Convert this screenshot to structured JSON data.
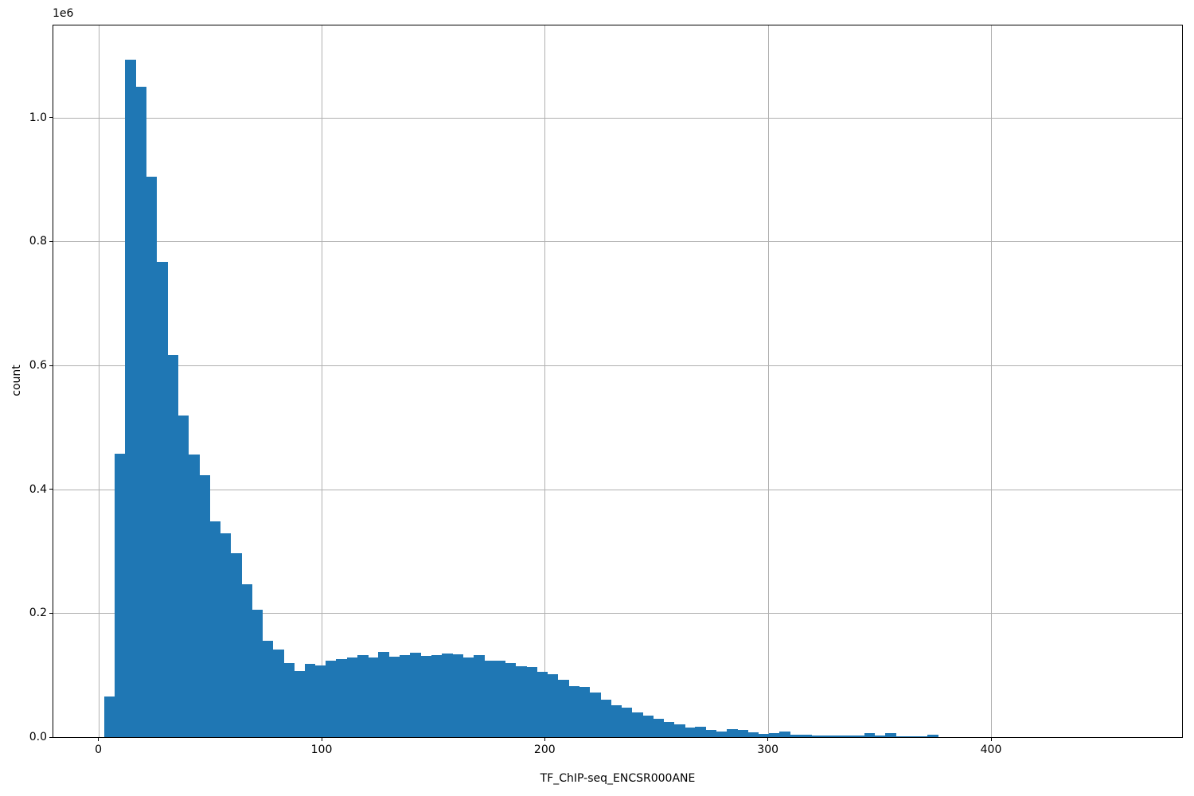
{
  "figure": {
    "background": "#ffffff",
    "text_color": "#000000"
  },
  "chart_data": {
    "type": "histogram",
    "title": "",
    "xlabel": "TF_ChIP-seq_ENCSR000ANE",
    "ylabel": "count",
    "y_offset_label": "1e6",
    "x_ticks": [
      0,
      100,
      200,
      300,
      400
    ],
    "y_ticks": [
      0.0,
      0.2,
      0.4,
      0.6,
      0.8,
      1.0
    ],
    "y_tick_labels": [
      "0.0",
      "0.2",
      "0.4",
      "0.6",
      "0.8",
      "1.0"
    ],
    "y_tick_scale": 1000000,
    "xlim": [
      -20.2,
      485.6
    ],
    "ylim": [
      0,
      1148700
    ],
    "grid": true,
    "legend_position": "none",
    "bar_color": "#1f77b4",
    "grid_color": "#b0b0b0",
    "bin_start": 2.5,
    "bin_width": 4.731,
    "counts": [
      66000,
      458000,
      1094000,
      1050000,
      905000,
      767000,
      617000,
      519000,
      456000,
      423000,
      348000,
      329000,
      297000,
      247000,
      205000,
      155000,
      142000,
      119000,
      107000,
      118000,
      116000,
      124000,
      126000,
      128000,
      133000,
      128000,
      137000,
      130000,
      133000,
      136000,
      131000,
      133000,
      135000,
      134000,
      128000,
      132000,
      124000,
      123000,
      120000,
      114000,
      113000,
      106000,
      102000,
      93000,
      82000,
      81000,
      72000,
      60000,
      52000,
      47000,
      40000,
      35000,
      30000,
      25000,
      21000,
      15000,
      17000,
      12000,
      9000,
      13000,
      11000,
      8000,
      5000,
      6000,
      9000,
      4500,
      4500,
      3000,
      3000,
      2500,
      2000,
      2000,
      7000,
      2000,
      6000,
      1500,
      1000,
      1000,
      4500
    ]
  }
}
